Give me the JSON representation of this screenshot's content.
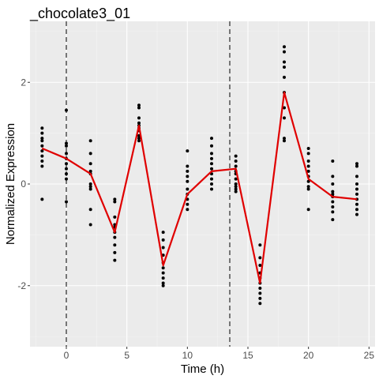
{
  "chart_data": {
    "type": "scatter",
    "title": "_chocolate3_01",
    "xlabel": "Time (h)",
    "ylabel": "Normalized Expression",
    "xlim": [
      -3,
      25.5
    ],
    "ylim": [
      -3.2,
      3.2
    ],
    "x_ticks": [
      0,
      5,
      10,
      15,
      20,
      25
    ],
    "y_ticks": [
      -2,
      0,
      2
    ],
    "vlines": [
      0,
      13.5
    ],
    "grid": true,
    "points": [
      {
        "x": -2,
        "y": [
          1.1,
          1.0,
          0.9,
          0.85,
          0.75,
          0.65,
          0.55,
          0.45,
          0.35,
          -0.3
        ]
      },
      {
        "x": 0,
        "y": [
          1.45,
          0.8,
          0.75,
          0.6,
          0.5,
          0.4,
          0.3,
          0.2,
          0.1,
          -0.35
        ]
      },
      {
        "x": 2,
        "y": [
          0.85,
          0.6,
          0.4,
          0.25,
          0.2,
          0.0,
          -0.05,
          -0.1,
          -0.5,
          -0.8
        ]
      },
      {
        "x": 4,
        "y": [
          -0.3,
          -0.35,
          -0.65,
          -0.8,
          -0.85,
          -0.95,
          -1.05,
          -1.2,
          -1.35,
          -1.5
        ]
      },
      {
        "x": 6,
        "y": [
          1.55,
          1.5,
          1.3,
          1.2,
          1.15,
          1.1,
          1.05,
          0.95,
          0.9,
          0.85
        ]
      },
      {
        "x": 8,
        "y": [
          -0.95,
          -1.1,
          -1.25,
          -1.4,
          -1.55,
          -1.65,
          -1.75,
          -1.85,
          -1.95,
          -2.0
        ]
      },
      {
        "x": 10,
        "y": [
          0.65,
          0.35,
          0.25,
          0.15,
          0.05,
          -0.1,
          -0.2,
          -0.3,
          -0.4,
          -0.5
        ]
      },
      {
        "x": 12,
        "y": [
          0.9,
          0.75,
          0.6,
          0.5,
          0.4,
          0.3,
          0.2,
          0.1,
          0.0,
          -0.1
        ]
      },
      {
        "x": 14,
        "y": [
          0.55,
          0.45,
          0.35,
          0.25,
          0.2,
          0.1,
          0.0,
          -0.05,
          -0.1,
          -0.15
        ]
      },
      {
        "x": 16,
        "y": [
          -1.2,
          -1.45,
          -1.6,
          -1.75,
          -1.85,
          -1.95,
          -2.05,
          -2.15,
          -2.25,
          -2.35
        ]
      },
      {
        "x": 18,
        "y": [
          2.7,
          2.6,
          2.4,
          2.3,
          2.1,
          1.8,
          1.5,
          1.3,
          0.9,
          0.85
        ]
      },
      {
        "x": 20,
        "y": [
          0.7,
          0.6,
          0.45,
          0.35,
          0.25,
          0.15,
          0.05,
          -0.05,
          -0.1,
          -0.5
        ]
      },
      {
        "x": 22,
        "y": [
          0.45,
          0.15,
          0.0,
          -0.15,
          -0.2,
          -0.25,
          -0.35,
          -0.45,
          -0.55,
          -0.7
        ]
      },
      {
        "x": 24,
        "y": [
          0.4,
          0.35,
          0.15,
          0.0,
          -0.1,
          -0.2,
          -0.3,
          -0.4,
          -0.5,
          -0.6
        ]
      }
    ],
    "series": [
      {
        "x": [
          -2,
          0,
          2,
          4,
          6,
          8,
          10,
          12,
          14,
          16,
          18,
          20,
          22,
          24
        ],
        "values": [
          0.7,
          0.5,
          0.2,
          -0.95,
          1.15,
          -1.6,
          -0.2,
          0.25,
          0.3,
          -1.95,
          1.8,
          0.1,
          -0.25,
          -0.3
        ],
        "color": "#e00000"
      }
    ],
    "colors": {
      "panel_background": "#ebebeb",
      "grid_major": "#ffffff",
      "points": "#000000",
      "vline": "#000000"
    }
  }
}
